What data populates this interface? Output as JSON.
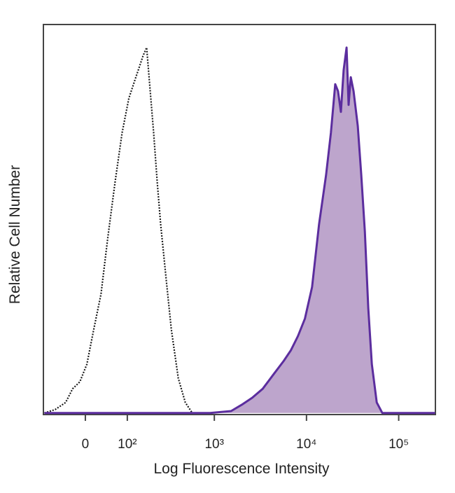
{
  "chart_data": {
    "type": "histogram-overlay",
    "x_label": "Log Fluorescence Intensity",
    "y_label": "Relative Cell Number",
    "xscale": "biexponential",
    "xlim": [
      -100,
      250000
    ],
    "ylim": [
      0,
      100
    ],
    "xticks": [
      0,
      {
        "value": 100,
        "label": "10²"
      },
      {
        "value": 1000,
        "label": "10³"
      },
      {
        "value": 10000,
        "label": "10⁴"
      },
      {
        "value": 100000,
        "label": "10⁵"
      }
    ],
    "series": [
      {
        "color": "#1a1a1a",
        "dashed": true,
        "x": [
          -97,
          -66,
          -41,
          -26,
          -11,
          3,
          17,
          32,
          47,
          65,
          84,
          105,
          130,
          144,
          159,
          176,
          194,
          213,
          234,
          256,
          296,
          337,
          403,
          482,
          575
        ],
        "values": [
          0.4,
          1.3,
          3.1,
          6.6,
          8.4,
          12.9,
          21.9,
          30.9,
          45.2,
          59.6,
          72.2,
          81.1,
          86.5,
          89.2,
          91.9,
          94.1,
          82.9,
          72.2,
          59.6,
          48.8,
          34.5,
          21.9,
          9.3,
          3.1,
          0.4
        ]
      },
      {
        "color": "#5b2d9e",
        "fill": "#bda5cc",
        "x": [
          -97,
          897,
          1520,
          1980,
          2580,
          3350,
          4360,
          5680,
          6780,
          8080,
          9620,
          11500,
          13700,
          16300,
          18400,
          20500,
          22000,
          23600,
          25300,
          27200,
          28600,
          30200,
          32400,
          36000,
          39300,
          42900,
          46800,
          51100,
          57800,
          66500,
          248000
        ],
        "values": [
          0.4,
          0.4,
          0.9,
          2.5,
          4.3,
          6.6,
          10.2,
          13.8,
          16.5,
          20.1,
          24.6,
          32.7,
          48.8,
          61.4,
          72.2,
          84.7,
          82.9,
          77.6,
          88.3,
          94.1,
          79.4,
          86.5,
          82.9,
          74.0,
          61.4,
          47.0,
          27.3,
          12.9,
          3.1,
          0.4,
          0.4
        ]
      }
    ]
  }
}
